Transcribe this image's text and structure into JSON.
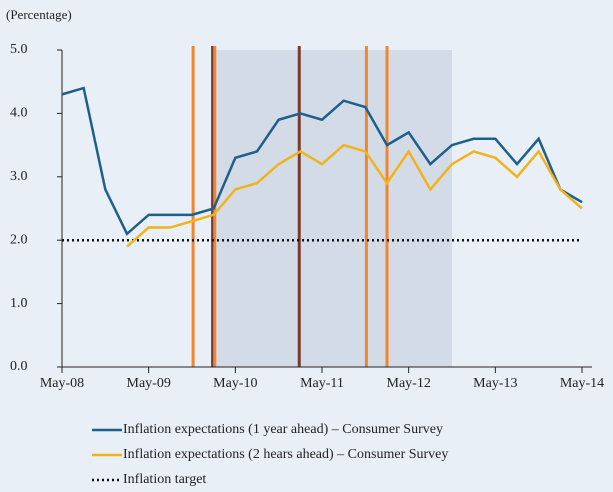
{
  "chart_data": {
    "type": "line",
    "y_unit_label": "(Percentage)",
    "categories": [
      "May-08",
      null,
      null,
      null,
      "May-09",
      null,
      null,
      null,
      "May-10",
      null,
      null,
      null,
      "May-11",
      null,
      null,
      null,
      "May-12",
      null,
      null,
      null,
      "May-13",
      null,
      null,
      null,
      "May-14"
    ],
    "series": [
      {
        "name": "Inflation expectations (1 year ahead) – Consumer Survey",
        "color": "#1f5f8b",
        "values": [
          4.3,
          4.4,
          2.8,
          2.1,
          2.4,
          2.4,
          2.4,
          2.5,
          3.3,
          3.4,
          3.9,
          4.0,
          3.9,
          4.2,
          4.1,
          3.5,
          3.7,
          3.2,
          3.5,
          3.6,
          3.6,
          3.2,
          3.6,
          2.8,
          2.6
        ]
      },
      {
        "name": "Inflation expectations (2 hears ahead) – Consumer Survey",
        "color": "#f2b21c",
        "values": [
          null,
          null,
          null,
          1.9,
          2.2,
          2.2,
          2.3,
          2.4,
          2.8,
          2.9,
          3.2,
          3.4,
          3.2,
          3.5,
          3.4,
          2.9,
          3.4,
          2.8,
          3.2,
          3.4,
          3.3,
          3.0,
          3.4,
          2.8,
          2.5
        ]
      }
    ],
    "target": {
      "name": "Inflation target",
      "value": 2.0,
      "color": "#111111"
    },
    "shade": {
      "from": 7,
      "to": 18,
      "color": "#d3dbe7"
    },
    "vlines": [
      {
        "at": 6.05,
        "color": "#f0862e"
      },
      {
        "at": 6.95,
        "color": "#7a3b2e"
      },
      {
        "at": 7.05,
        "color": "#f0862e"
      },
      {
        "at": 10.95,
        "color": "#7a3b2e"
      },
      {
        "at": 14.05,
        "color": "#f0862e"
      },
      {
        "at": 15.0,
        "color": "#f0862e"
      }
    ],
    "ylim": [
      0,
      5
    ],
    "yticks": [
      {
        "value": 0,
        "label": "0.0"
      },
      {
        "value": 1,
        "label": "1.0"
      },
      {
        "value": 2,
        "label": "2.0"
      },
      {
        "value": 3,
        "label": "3.0"
      },
      {
        "value": 4,
        "label": "4.0"
      },
      {
        "value": 5,
        "label": "5.0"
      }
    ]
  }
}
